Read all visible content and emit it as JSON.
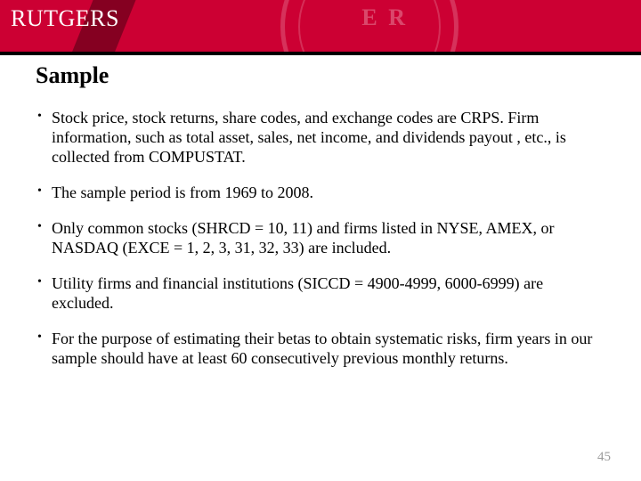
{
  "header": {
    "logo_text": "RUTGERS",
    "band_color": "#cc0033",
    "line_color": "#000000"
  },
  "slide": {
    "title": "Sample",
    "title_fontsize": 26,
    "title_color": "#000000",
    "bullets": [
      "Stock price, stock returns, share codes, and exchange codes are CRPS. Firm information, such as total asset, sales, net income, and dividends payout , etc., is collected from COMPUSTAT.",
      "The sample period is from 1969 to 2008.",
      "Only common stocks (SHRCD = 10, 11) and firms listed in NYSE, AMEX, or NASDAQ (EXCE = 1, 2, 3, 31, 32, 33) are included.",
      "Utility firms and financial institutions (SICCD = 4900-4999, 6000-6999) are excluded.",
      "For the purpose of estimating their betas to obtain systematic risks, firm years in our sample should have at least 60 consecutively previous monthly returns."
    ],
    "bullet_fontsize": 18,
    "bullet_color": "#000000"
  },
  "page_number": "45",
  "page_number_color": "#9a9a9a",
  "background_color": "#ffffff"
}
